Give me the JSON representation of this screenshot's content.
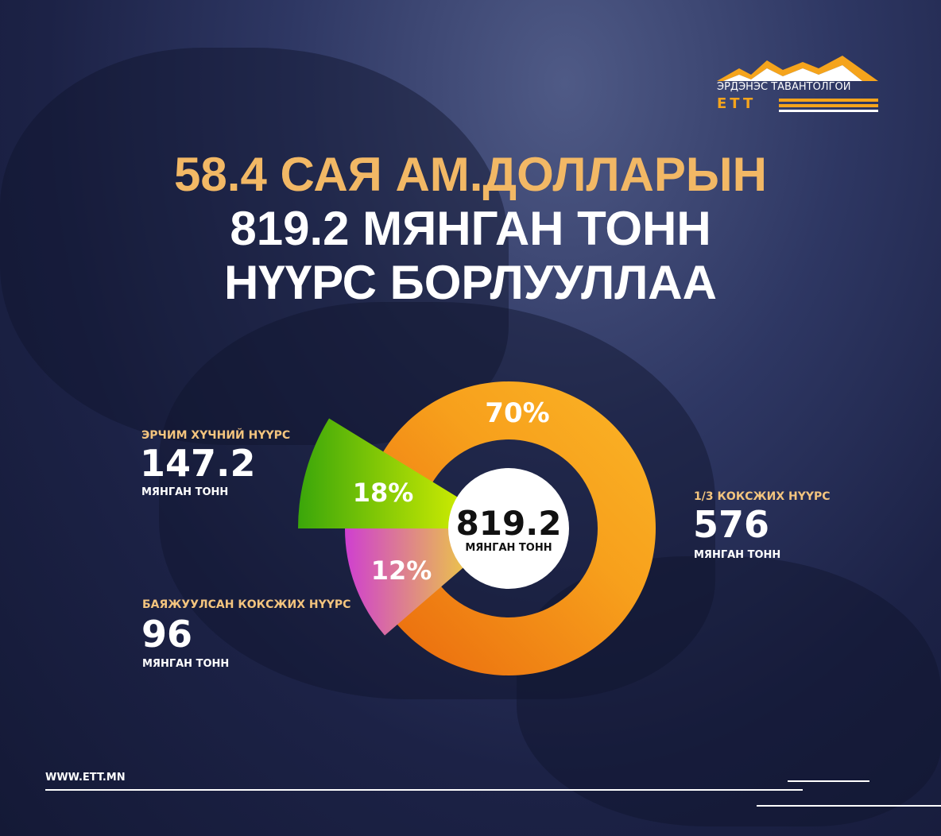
{
  "logo": {
    "text": "ЭРДЭНЭС ТАВАНТОЛГОЙ",
    "abbr": "ETT",
    "colors": {
      "orange": "#f5a41c",
      "white": "#ffffff"
    }
  },
  "headline": {
    "line1": "58.4 САЯ АМ.ДОЛЛАРЫН",
    "line2": "819.2 МЯНГАН ТОНН",
    "line3": "НҮҮРС БОРЛУУЛЛАА"
  },
  "chart_data": {
    "type": "pie",
    "center": {
      "value": "819.2",
      "unit": "МЯНГАН ТОНН"
    },
    "slices": [
      {
        "name": "1/3 КОКСЖИХ НҮҮРС",
        "value": 576,
        "unit": "МЯНГАН ТОНН",
        "percent_label": "70%",
        "percent": 70,
        "color": "#f59a1a"
      },
      {
        "name": "ЭРЧИМ ХҮЧНИЙ НҮҮРС",
        "value": 147.2,
        "unit": "МЯНГАН ТОНН",
        "percent_label": "18%",
        "percent": 18,
        "color": "#9ed40c"
      },
      {
        "name": "БАЯЖУУЛСАН КОКСЖИХ НҮҮРС",
        "value": 96,
        "unit": "МЯНГАН ТОНН",
        "percent_label": "12%",
        "percent": 12,
        "color": "#d9559f"
      }
    ]
  },
  "labels": {
    "energy": {
      "title": "ЭРЧИМ ХҮЧНИЙ НҮҮРС",
      "value": "147.2",
      "unit": "МЯНГАН ТОНН"
    },
    "coking": {
      "title": "1/3 КОКСЖИХ НҮҮРС",
      "value": "576",
      "unit": "МЯНГАН ТОНН"
    },
    "washed": {
      "title": "БАЯЖУУЛСАН КОКСЖИХ НҮҮРС",
      "value": "96",
      "unit": "МЯНГАН ТОНН"
    }
  },
  "footer": {
    "website": "WWW.ETT.MN"
  }
}
